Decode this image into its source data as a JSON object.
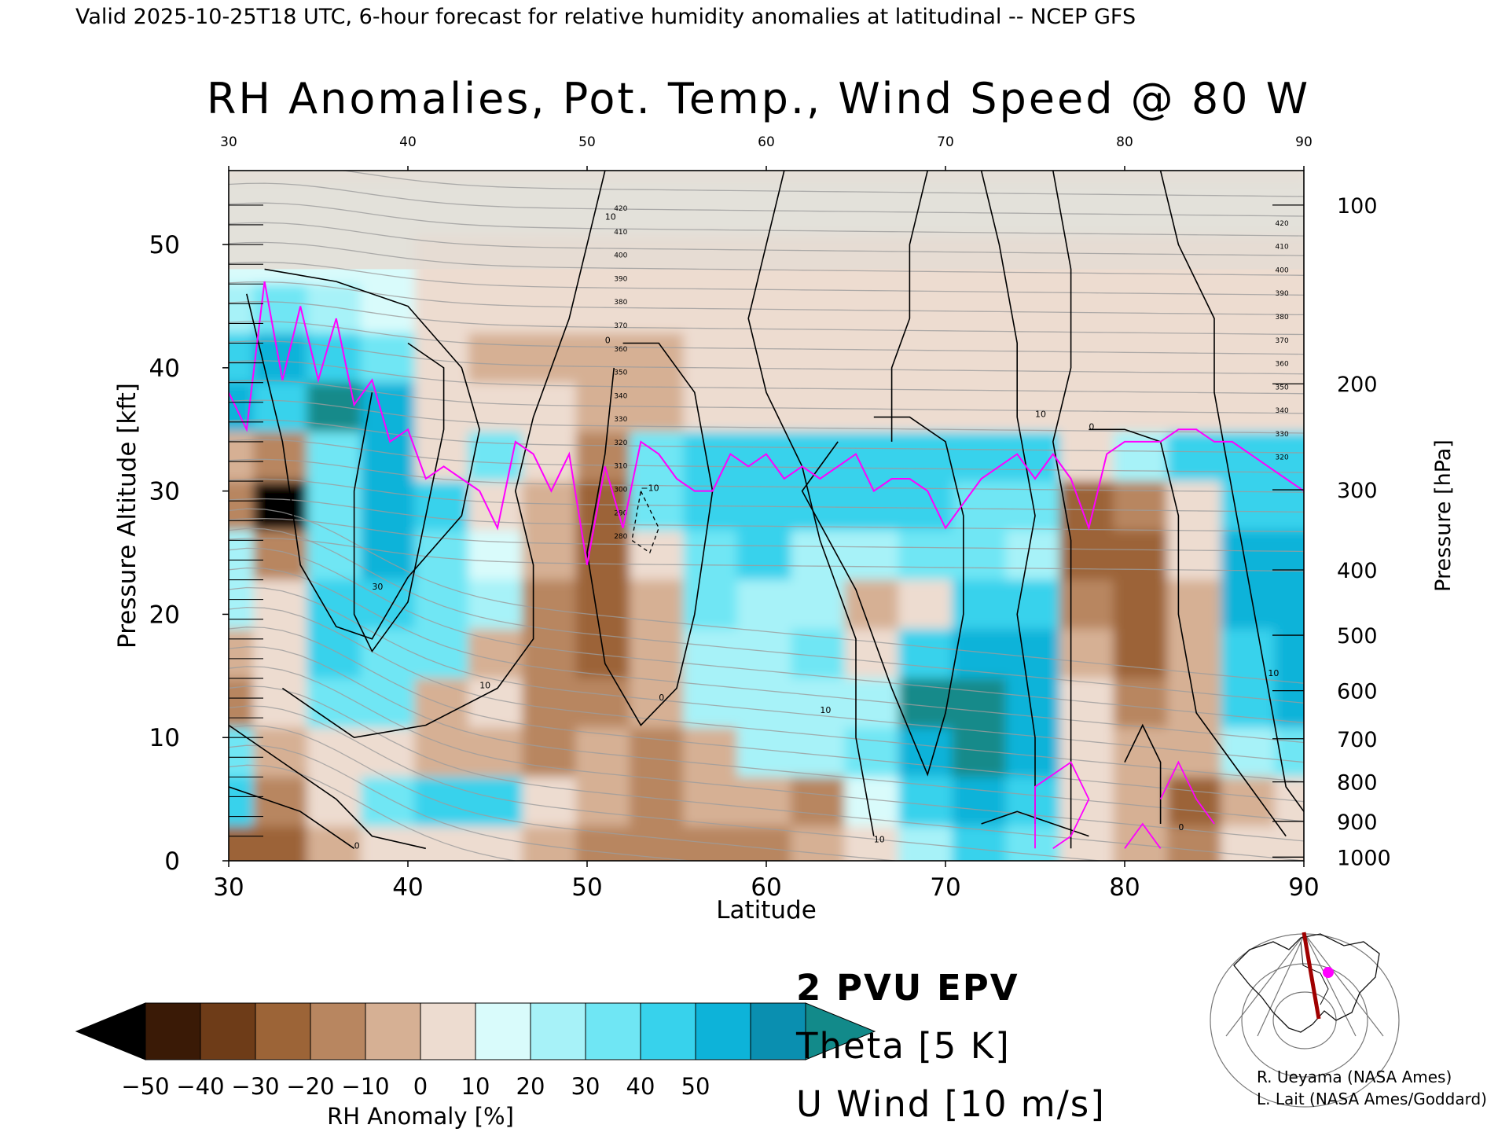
{
  "header": "Valid 2025-10-25T18 UTC, 6-hour forecast for relative humidity anomalies at latitudinal -- NCEP GFS",
  "chart_data": {
    "type": "heatmap",
    "title": "RH Anomalies, Pot. Temp., Wind Speed @ 80 W",
    "xlabel": "Latitude",
    "ylabel": "Pressure Altitude [kft]",
    "y2label": "Pressure [hPa]",
    "xlim": [
      30,
      90
    ],
    "ylim": [
      0,
      56
    ],
    "x_ticks": [
      "30",
      "40",
      "50",
      "60",
      "70",
      "80",
      "90"
    ],
    "y_ticks": [
      "0",
      "10",
      "20",
      "30",
      "40",
      "50"
    ],
    "pressure_ticks": [
      {
        "label": "100",
        "kft": 53.2
      },
      {
        "label": "200",
        "kft": 38.7
      },
      {
        "label": "300",
        "kft": 30.1
      },
      {
        "label": "400",
        "kft": 23.6
      },
      {
        "label": "500",
        "kft": 18.3
      },
      {
        "label": "600",
        "kft": 13.8
      },
      {
        "label": "700",
        "kft": 9.9
      },
      {
        "label": "800",
        "kft": 6.4
      },
      {
        "label": "900",
        "kft": 3.2
      },
      {
        "label": "1000",
        "kft": 0.3
      }
    ],
    "theta_labels": [
      "420",
      "410",
      "400",
      "390",
      "380",
      "370",
      "360",
      "350",
      "340",
      "330",
      "320",
      "310",
      "300",
      "290",
      "280"
    ],
    "colorbar": {
      "label": "RH Anomaly [%]",
      "ticks": [
        "−50",
        "−40",
        "−30",
        "−20",
        "−10",
        "0",
        "10",
        "20",
        "30",
        "40",
        "50"
      ],
      "colors": [
        "#3a1a06",
        "#6e3c18",
        "#9c6437",
        "#b88660",
        "#d6b094",
        "#eddcd0",
        "#d9fbfb",
        "#a7f2f8",
        "#6fe6f4",
        "#37d2ec",
        "#0db3d9",
        "#0a8fb0"
      ],
      "under_color": "#000000",
      "over_color": "#128a8a"
    },
    "rh_anomaly_field": {
      "x": [
        30,
        33,
        36,
        39,
        42,
        45,
        48,
        51,
        54,
        57,
        60,
        63,
        66,
        69,
        72,
        75,
        78,
        81,
        84,
        87,
        90
      ],
      "y": [
        1,
        5,
        9,
        13,
        17,
        21,
        25,
        29,
        33,
        37,
        41,
        45,
        49,
        53
      ],
      "z": [
        [
          -40,
          -35,
          -20,
          -10,
          -5,
          -10,
          -20,
          -25,
          -30,
          -30,
          -25,
          -20,
          -5,
          10,
          30,
          20,
          -10,
          -20,
          -30,
          -10,
          -5
        ],
        [
          30,
          -30,
          -10,
          20,
          35,
          30,
          -10,
          -15,
          -30,
          -20,
          -20,
          -25,
          0,
          30,
          40,
          30,
          -10,
          -20,
          -40,
          -20,
          -10
        ],
        [
          20,
          -20,
          -10,
          -10,
          -15,
          -20,
          -25,
          -20,
          -30,
          -20,
          10,
          10,
          20,
          45,
          50,
          40,
          -5,
          -20,
          -20,
          10,
          20
        ],
        [
          -30,
          -10,
          20,
          20,
          -20,
          -10,
          -30,
          -30,
          -20,
          10,
          10,
          15,
          10,
          50,
          50,
          40,
          -10,
          -30,
          -20,
          30,
          40
        ],
        [
          -20,
          -10,
          30,
          25,
          20,
          -20,
          -30,
          -40,
          -20,
          15,
          10,
          20,
          -10,
          30,
          45,
          40,
          -20,
          -40,
          -20,
          30,
          45
        ],
        [
          10,
          -10,
          30,
          30,
          20,
          10,
          -30,
          -40,
          -15,
          20,
          10,
          15,
          -20,
          -10,
          30,
          30,
          -30,
          -40,
          -20,
          40,
          45
        ],
        [
          10,
          -30,
          20,
          40,
          20,
          0,
          -20,
          -40,
          -10,
          20,
          30,
          15,
          10,
          20,
          20,
          10,
          -40,
          -40,
          -10,
          40,
          40
        ],
        [
          -30,
          -50,
          20,
          40,
          30,
          -10,
          -20,
          -40,
          20,
          30,
          30,
          30,
          30,
          30,
          20,
          20,
          -40,
          -30,
          -10,
          30,
          30
        ],
        [
          -20,
          -30,
          20,
          40,
          -10,
          20,
          -10,
          -30,
          20,
          30,
          30,
          30,
          30,
          30,
          30,
          30,
          -10,
          10,
          30,
          30,
          30
        ],
        [
          40,
          30,
          50,
          40,
          -10,
          -10,
          -10,
          -20,
          -15,
          -10,
          -10,
          -10,
          -10,
          -10,
          -10,
          -10,
          -10,
          -10,
          -10,
          -10,
          -10
        ],
        [
          30,
          40,
          30,
          20,
          -10,
          -20,
          -20,
          -20,
          -15,
          -10,
          -10,
          -10,
          -10,
          -10,
          -10,
          -10,
          -10,
          -10,
          -10,
          -10,
          -10
        ],
        [
          10,
          20,
          10,
          0,
          -10,
          -10,
          -10,
          -10,
          -10,
          -10,
          -10,
          -5,
          -5,
          -5,
          -5,
          -5,
          -5,
          -5,
          -5,
          -5,
          -5
        ],
        [
          5,
          5,
          0,
          0,
          -5,
          -5,
          -5,
          -5,
          -5,
          -5,
          -5,
          -5,
          -5,
          -5,
          -5,
          -5,
          -5,
          -5,
          -5,
          -5,
          -5
        ],
        [
          0,
          0,
          0,
          0,
          0,
          0,
          0,
          0,
          0,
          0,
          0,
          0,
          0,
          0,
          0,
          0,
          0,
          0,
          0,
          0,
          0
        ]
      ]
    },
    "series": [
      {
        "name": "2 PVU EPV",
        "color": "#ff00ff",
        "x": [
          30,
          31,
          32,
          33,
          34,
          35,
          36,
          37,
          38,
          39,
          40,
          41,
          42,
          43,
          44,
          45,
          46,
          47,
          48,
          49,
          50,
          51,
          52,
          53,
          54,
          55,
          56,
          57,
          58,
          59,
          60,
          61,
          62,
          63,
          64,
          65,
          66,
          67,
          68,
          69,
          70,
          71,
          72,
          73,
          74,
          75,
          76,
          77,
          78,
          79,
          80,
          81,
          82,
          83,
          84,
          85,
          86,
          87,
          88,
          89,
          90
        ],
        "y": [
          38,
          35,
          47,
          39,
          45,
          39,
          44,
          37,
          39,
          34,
          35,
          31,
          32,
          31,
          30,
          27,
          34,
          33,
          30,
          33,
          24,
          32,
          27,
          34,
          33,
          31,
          30,
          30,
          33,
          32,
          33,
          31,
          32,
          31,
          32,
          33,
          30,
          31,
          31,
          30,
          27,
          29,
          31,
          32,
          33,
          31,
          33,
          31,
          27,
          33,
          34,
          34,
          34,
          35,
          35,
          34,
          34,
          33,
          32,
          31,
          30
        ]
      }
    ],
    "contours": [
      {
        "name": "U Wind [10 m/s]",
        "color": "#000000",
        "levels": [
          "0",
          "10",
          "30"
        ]
      },
      {
        "name": "Theta [5 K]",
        "color": "#a0a0a0"
      }
    ],
    "legend": [
      "2 PVU EPV",
      "Theta [5 K]",
      "U Wind [10 m/s]"
    ],
    "legend_placement": "bottom-center"
  },
  "credits": [
    "R. Ueyama (NASA Ames)",
    "L. Lait (NASA Ames/Goddard)"
  ],
  "inset_map": {
    "marker_color": "#ff00ff",
    "track_color": "#a00000"
  }
}
